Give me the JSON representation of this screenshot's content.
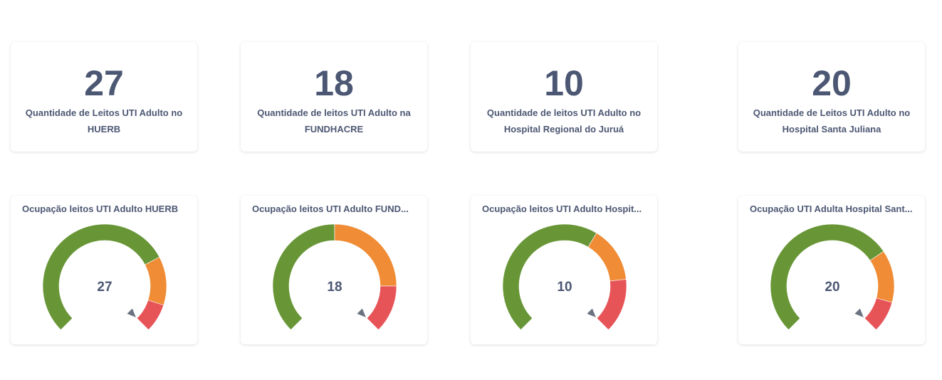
{
  "colors": {
    "green": "#689636",
    "orange": "#ef8c35",
    "red": "#e75458",
    "needle": "#6b7280",
    "text": "#4c5773"
  },
  "scalars": [
    {
      "value": "27",
      "label": "Quantidade de Leitos UTI Adulto no HUERB"
    },
    {
      "value": "18",
      "label": "Quantidade de leitos UTI Adulto na FUNDHACRE"
    },
    {
      "value": "10",
      "label": "Quantidade de leitos UTI Adulto no Hospital Regional do Juruá"
    },
    {
      "value": "20",
      "label": "Quantidade de Leitos UTI Adulto no Hospital Santa Juliana"
    }
  ],
  "gauges": [
    {
      "title": "Ocupação leitos UTI Adulto HUERB",
      "value": "27",
      "segments": [
        0.73,
        0.9,
        1.0
      ],
      "needle": 1.0
    },
    {
      "title": "Ocupação leitos UTI Adulto FUND...",
      "value": "18",
      "segments": [
        0.5,
        0.833,
        1.0
      ],
      "needle": 1.0
    },
    {
      "title": "Ocupação leitos UTI Adulto Hospit...",
      "value": "10",
      "segments": [
        0.615,
        0.81,
        1.0
      ],
      "needle": 1.0
    },
    {
      "title": "Ocupação UTI Adulta Hospital Sant...",
      "value": "20",
      "segments": [
        0.707,
        0.89,
        1.0
      ],
      "needle": 1.0
    }
  ]
}
